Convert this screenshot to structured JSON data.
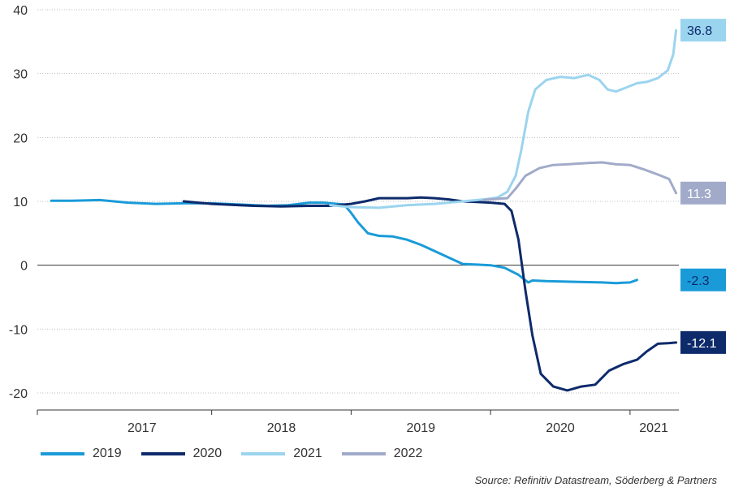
{
  "chart_data": {
    "type": "line",
    "title": "",
    "xlabel": "",
    "ylabel": "",
    "ylim": [
      -22,
      40
    ],
    "yticks": [
      40,
      30,
      20,
      10,
      0,
      -10,
      -20
    ],
    "x_range": [
      2016.75,
      2021.35
    ],
    "year_labels": [
      {
        "label": "2017",
        "x": 2017.5
      },
      {
        "label": "2018",
        "x": 2018.5
      },
      {
        "label": "2019",
        "x": 2019.5
      },
      {
        "label": "2020",
        "x": 2020.5
      },
      {
        "label": "2021",
        "x": 2021.17
      }
    ],
    "year_boundaries": [
      2018.0,
      2019.0,
      2020.0,
      2021.0
    ],
    "grid": true,
    "legend_position": "bottom",
    "series": [
      {
        "name": "2019",
        "color": "#1a9bd8",
        "points": [
          [
            2016.85,
            10.1
          ],
          [
            2017.0,
            10.1
          ],
          [
            2017.2,
            10.2
          ],
          [
            2017.4,
            9.8
          ],
          [
            2017.6,
            9.6
          ],
          [
            2017.8,
            9.7
          ],
          [
            2018.0,
            9.7
          ],
          [
            2018.2,
            9.5
          ],
          [
            2018.4,
            9.3
          ],
          [
            2018.55,
            9.4
          ],
          [
            2018.7,
            9.8
          ],
          [
            2018.8,
            9.8
          ],
          [
            2018.95,
            9.5
          ],
          [
            2019.0,
            8.2
          ],
          [
            2019.05,
            6.7
          ],
          [
            2019.12,
            5.0
          ],
          [
            2019.2,
            4.6
          ],
          [
            2019.3,
            4.5
          ],
          [
            2019.4,
            4.0
          ],
          [
            2019.5,
            3.2
          ],
          [
            2019.6,
            2.2
          ],
          [
            2019.7,
            1.2
          ],
          [
            2019.8,
            0.2
          ],
          [
            2019.9,
            0.1
          ],
          [
            2020.0,
            0.0
          ],
          [
            2020.1,
            -0.4
          ],
          [
            2020.2,
            -1.5
          ],
          [
            2020.27,
            -2.7
          ],
          [
            2020.3,
            -2.4
          ],
          [
            2020.4,
            -2.5
          ],
          [
            2020.6,
            -2.6
          ],
          [
            2020.8,
            -2.7
          ],
          [
            2020.9,
            -2.8
          ],
          [
            2021.0,
            -2.7
          ],
          [
            2021.05,
            -2.3
          ]
        ]
      },
      {
        "name": "2020",
        "color": "#0d2a6b",
        "points": [
          [
            2017.8,
            10.0
          ],
          [
            2017.9,
            9.8
          ],
          [
            2018.0,
            9.6
          ],
          [
            2018.2,
            9.4
          ],
          [
            2018.3,
            9.3
          ],
          [
            2018.5,
            9.2
          ],
          [
            2018.7,
            9.3
          ],
          [
            2018.85,
            9.3
          ],
          [
            2019.0,
            9.6
          ],
          [
            2019.1,
            10.0
          ],
          [
            2019.2,
            10.5
          ],
          [
            2019.3,
            10.5
          ],
          [
            2019.4,
            10.5
          ],
          [
            2019.5,
            10.6
          ],
          [
            2019.6,
            10.5
          ],
          [
            2019.7,
            10.3
          ],
          [
            2019.8,
            10.0
          ],
          [
            2019.9,
            9.9
          ],
          [
            2020.0,
            9.8
          ],
          [
            2020.1,
            9.6
          ],
          [
            2020.15,
            8.5
          ],
          [
            2020.2,
            4.0
          ],
          [
            2020.25,
            -4.0
          ],
          [
            2020.3,
            -11.0
          ],
          [
            2020.36,
            -17.0
          ],
          [
            2020.45,
            -19.0
          ],
          [
            2020.55,
            -19.6
          ],
          [
            2020.65,
            -19.0
          ],
          [
            2020.75,
            -18.7
          ],
          [
            2020.85,
            -16.5
          ],
          [
            2020.95,
            -15.5
          ],
          [
            2021.05,
            -14.8
          ],
          [
            2021.12,
            -13.5
          ],
          [
            2021.2,
            -12.3
          ],
          [
            2021.28,
            -12.2
          ],
          [
            2021.33,
            -12.1
          ]
        ]
      },
      {
        "name": "2021",
        "color": "#9bd4ef",
        "points": [
          [
            2018.85,
            9.4
          ],
          [
            2019.0,
            9.1
          ],
          [
            2019.2,
            9.0
          ],
          [
            2019.4,
            9.4
          ],
          [
            2019.6,
            9.6
          ],
          [
            2019.8,
            10.0
          ],
          [
            2019.95,
            10.3
          ],
          [
            2020.05,
            10.6
          ],
          [
            2020.12,
            11.5
          ],
          [
            2020.18,
            14.0
          ],
          [
            2020.22,
            18.0
          ],
          [
            2020.27,
            24.0
          ],
          [
            2020.32,
            27.5
          ],
          [
            2020.4,
            29.0
          ],
          [
            2020.5,
            29.5
          ],
          [
            2020.6,
            29.3
          ],
          [
            2020.7,
            29.8
          ],
          [
            2020.78,
            29.0
          ],
          [
            2020.84,
            27.5
          ],
          [
            2020.9,
            27.2
          ],
          [
            2020.97,
            27.8
          ],
          [
            2021.05,
            28.5
          ],
          [
            2021.12,
            28.7
          ],
          [
            2021.2,
            29.3
          ],
          [
            2021.27,
            30.5
          ],
          [
            2021.31,
            33.0
          ],
          [
            2021.33,
            36.8
          ]
        ]
      },
      {
        "name": "2022",
        "color": "#a1abc9",
        "points": [
          [
            2019.95,
            10.2
          ],
          [
            2020.05,
            10.4
          ],
          [
            2020.12,
            10.5
          ],
          [
            2020.18,
            12.0
          ],
          [
            2020.25,
            14.0
          ],
          [
            2020.35,
            15.2
          ],
          [
            2020.45,
            15.7
          ],
          [
            2020.55,
            15.8
          ],
          [
            2020.7,
            16.0
          ],
          [
            2020.8,
            16.1
          ],
          [
            2020.9,
            15.8
          ],
          [
            2021.0,
            15.7
          ],
          [
            2021.1,
            15.0
          ],
          [
            2021.2,
            14.2
          ],
          [
            2021.28,
            13.5
          ],
          [
            2021.33,
            11.3
          ]
        ]
      }
    ],
    "end_labels": [
      {
        "text": "36.8",
        "value": 36.8,
        "bg": "#9bd4ef",
        "fg": "#0d2a6b"
      },
      {
        "text": "11.3",
        "value": 11.3,
        "bg": "#a1abc9",
        "fg": "#ffffff"
      },
      {
        "text": "-2.3",
        "value": -2.3,
        "bg": "#1a9bd8",
        "fg": "#0d2a6b"
      },
      {
        "text": "-12.1",
        "value": -12.1,
        "bg": "#0d2a6b",
        "fg": "#ffffff"
      }
    ]
  },
  "legend": {
    "items": [
      {
        "label": "2019",
        "color": "#1a9bd8"
      },
      {
        "label": "2020",
        "color": "#0d2a6b"
      },
      {
        "label": "2021",
        "color": "#9bd4ef"
      },
      {
        "label": "2022",
        "color": "#a1abc9"
      }
    ]
  },
  "source": "Source: Refinitiv Datastream, Söderberg & Partners"
}
